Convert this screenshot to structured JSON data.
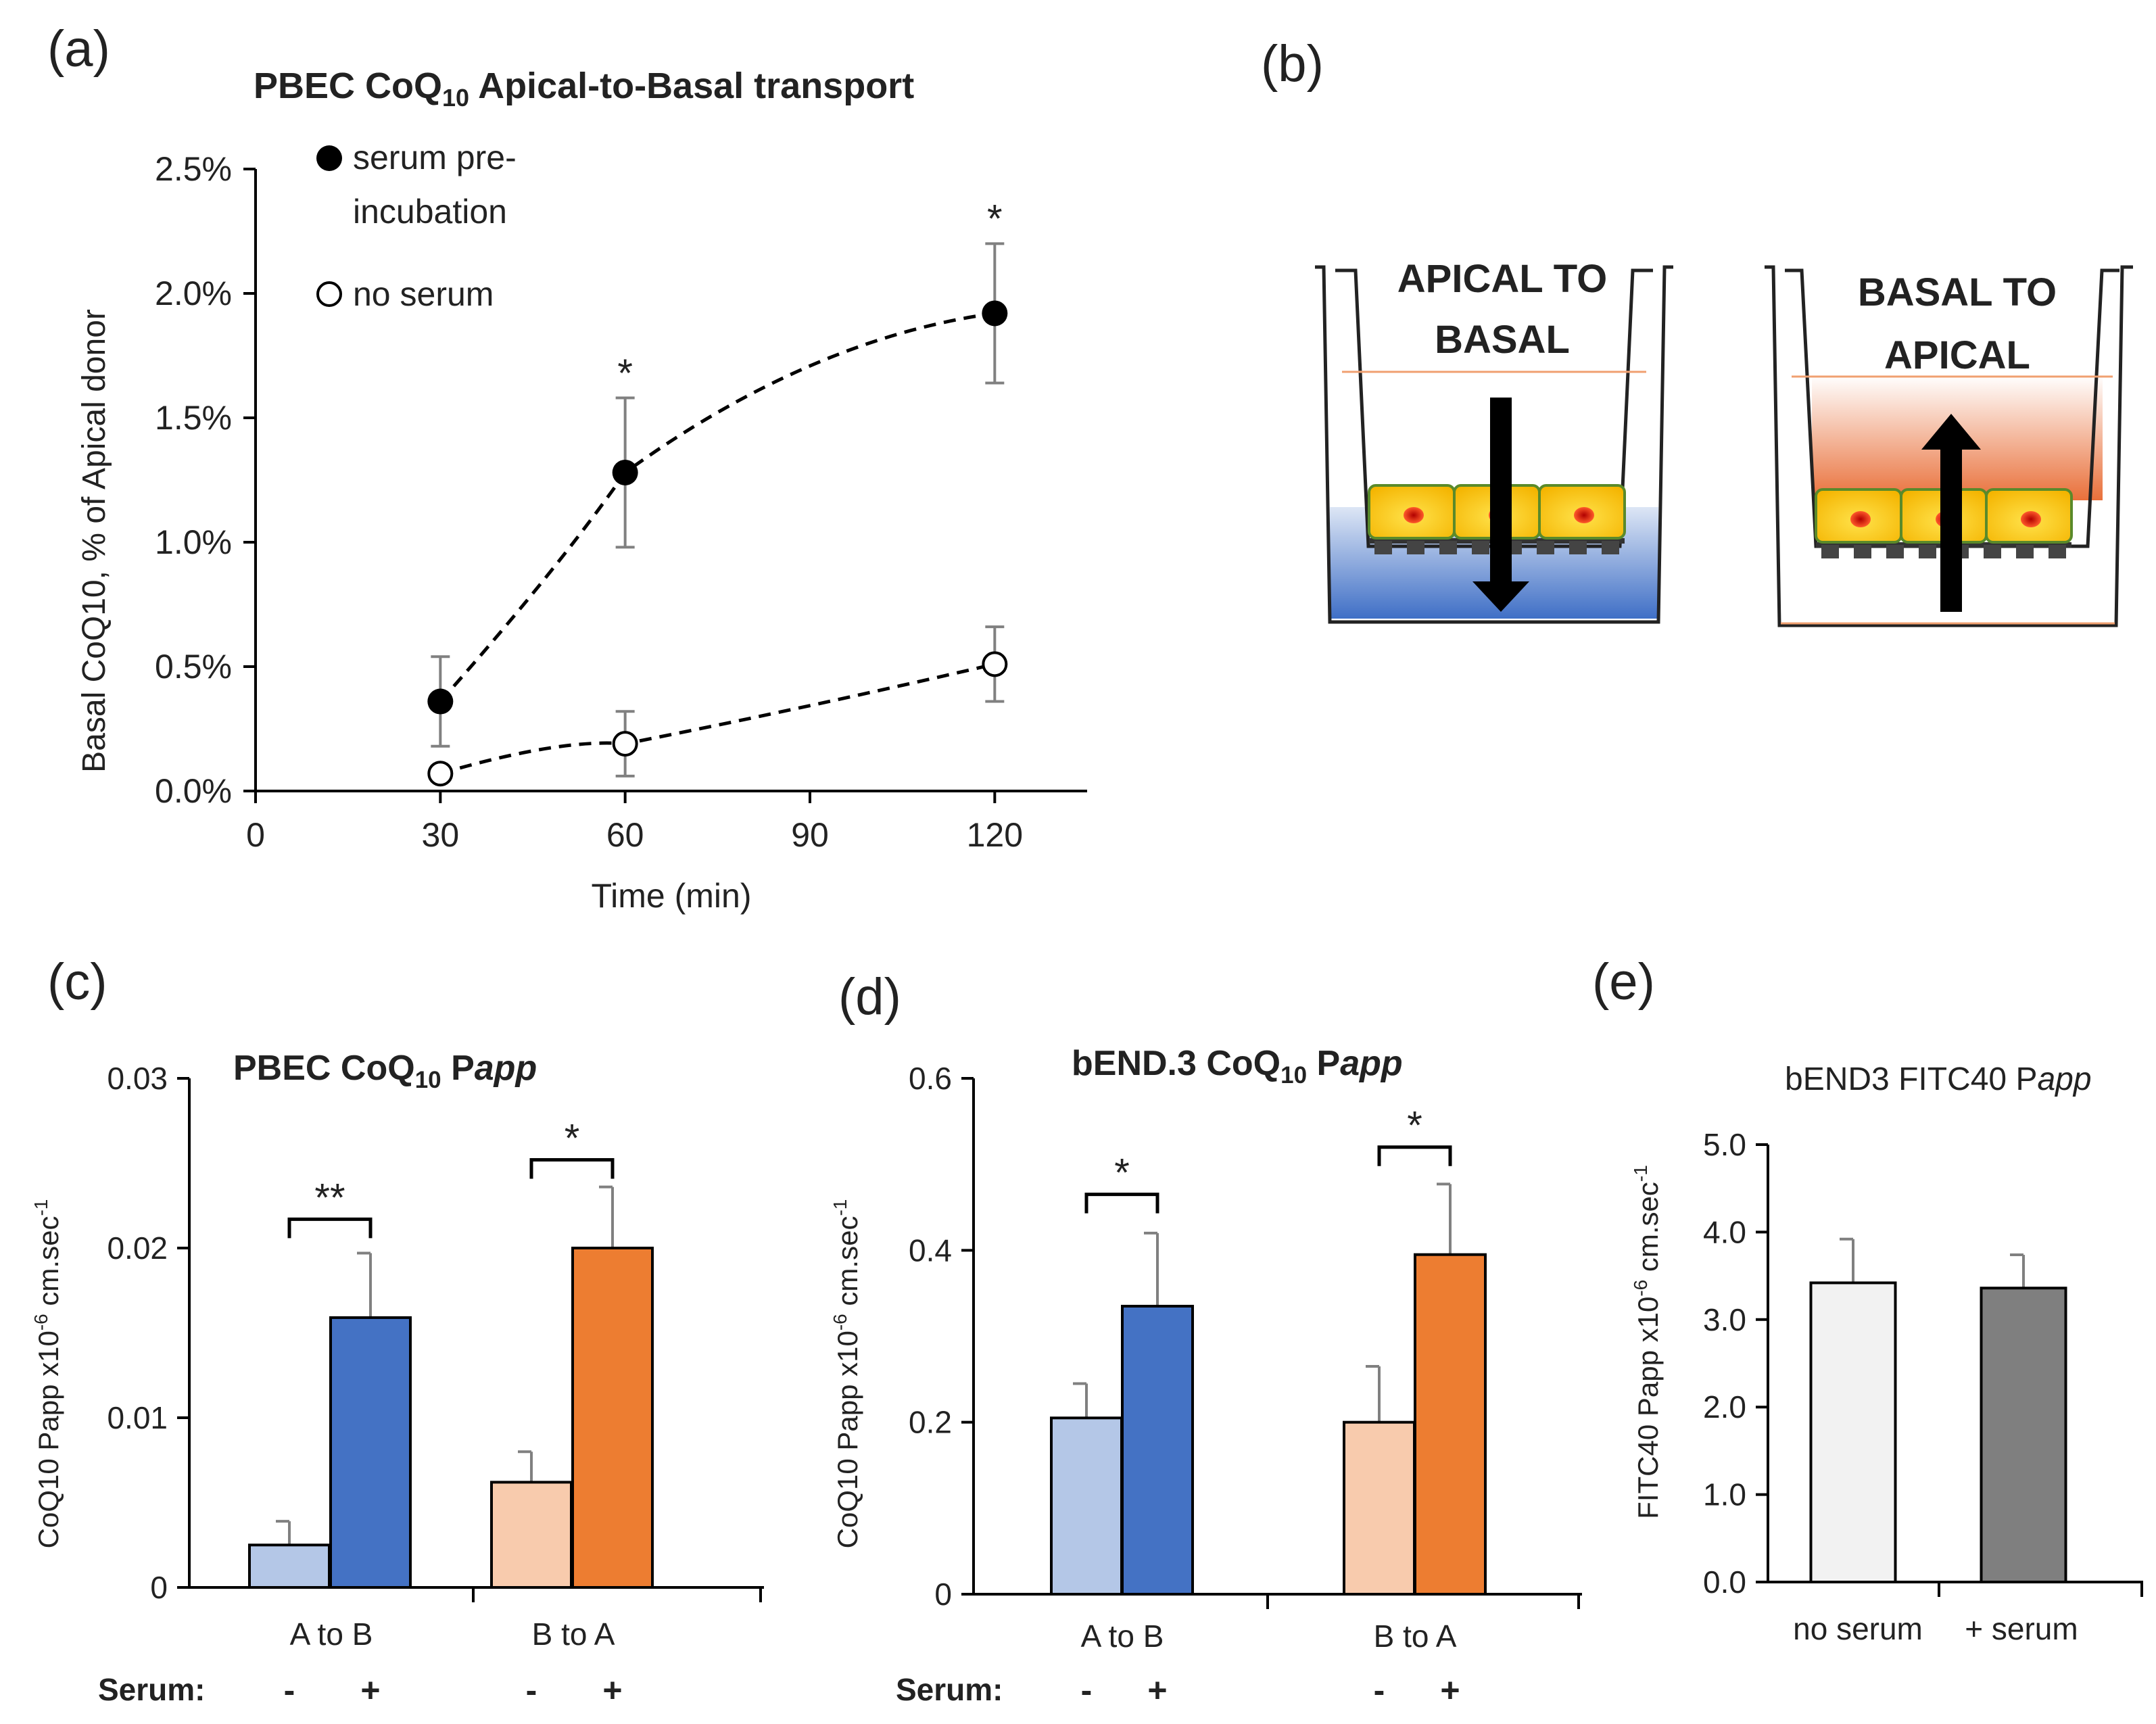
{
  "panels": {
    "a": "(a)",
    "b": "(b)",
    "c": "(c)",
    "d": "(d)",
    "e": "(e)"
  },
  "colors": {
    "light_blue": "#b4c7e7",
    "blue": "#4472c4",
    "light_orange": "#f8cbad",
    "orange": "#ed7d31",
    "light_gray": "#f2f2f2",
    "dark_gray": "#7f7f7f",
    "error_bar": "#808080",
    "axis": "#000000"
  },
  "diagram": {
    "left_label_line1": "APICAL TO",
    "left_label_line2": "BASAL",
    "right_label_line1": "BASAL TO",
    "right_label_line2": "APICAL"
  },
  "chart_data": [
    {
      "id": "a",
      "type": "scatter",
      "title_prefix": "PBEC CoQ",
      "title_sub": "10",
      "title_suffix": " Apical-to-Basal transport",
      "xlabel": "Time (min)",
      "ylabel": "Basal  CoQ10, % of Apical donor",
      "xlim": [
        0,
        135
      ],
      "ylim": [
        0,
        2.5
      ],
      "xticks": [
        "0",
        "30",
        "60",
        "90",
        "120"
      ],
      "xtick_values": [
        0,
        30,
        60,
        90,
        120
      ],
      "yticks": [
        "0.0%",
        "0.5%",
        "1.0%",
        "1.5%",
        "2.0%",
        "2.5%"
      ],
      "ytick_values": [
        0,
        0.5,
        1.0,
        1.5,
        2.0,
        2.5
      ],
      "legend_position": "top-left",
      "series": [
        {
          "name_line1": "serum pre-",
          "name_line2": "incubation",
          "marker": "filled",
          "x": [
            30,
            60,
            120
          ],
          "y": [
            0.36,
            1.28,
            1.92
          ],
          "err": [
            0.18,
            0.3,
            0.28
          ],
          "trend": "dashed"
        },
        {
          "name": "no serum",
          "marker": "open",
          "x": [
            30,
            60,
            120
          ],
          "y": [
            0.07,
            0.19,
            0.51
          ],
          "err": [
            0.03,
            0.13,
            0.15
          ],
          "trend": "dashed"
        }
      ],
      "annotations": [
        {
          "text": "*",
          "x": 60,
          "y": 1.68
        },
        {
          "text": "*",
          "x": 120,
          "y": 2.3
        }
      ]
    },
    {
      "id": "c",
      "type": "bar",
      "title_prefix": "PBEC CoQ",
      "title_sub": "10",
      "title_mid": " P",
      "title_italic": "app",
      "ylabel": "CoQ10  Papp x10",
      "ylabel_exp": "-6",
      "ylabel_unit": " cm.sec",
      "ylabel_unit_exp": "-1",
      "ylim": [
        0,
        0.03
      ],
      "yticks": [
        "0",
        "0.01",
        "0.02",
        "0.03"
      ],
      "ytick_values": [
        0,
        0.01,
        0.02,
        0.03
      ],
      "categories": [
        "A to B",
        "B to A"
      ],
      "serum_label": "Serum:",
      "serum_signs": [
        "-",
        "+",
        "-",
        "+"
      ],
      "bars": [
        {
          "value": 0.0025,
          "err": 0.0014,
          "color": "light_blue"
        },
        {
          "value": 0.0159,
          "err": 0.0038,
          "color": "blue"
        },
        {
          "value": 0.0062,
          "err": 0.0018,
          "color": "light_orange"
        },
        {
          "value": 0.02,
          "err": 0.0036,
          "color": "orange"
        }
      ],
      "significance": [
        {
          "pair": [
            0,
            1
          ],
          "text": "**",
          "level": 0.0217
        },
        {
          "pair": [
            2,
            3
          ],
          "text": "*",
          "level": 0.0252
        }
      ]
    },
    {
      "id": "d",
      "type": "bar",
      "title_prefix": "bEND.3 CoQ",
      "title_sub": "10",
      "title_mid": " P",
      "title_italic": "app",
      "ylabel": "CoQ10 Papp x10",
      "ylabel_exp": "-6",
      "ylabel_unit": "  cm.sec",
      "ylabel_unit_exp": "-1",
      "ylim": [
        0,
        0.6
      ],
      "yticks": [
        "0",
        "0.2",
        "0.4",
        "0.6"
      ],
      "ytick_values": [
        0,
        0.2,
        0.4,
        0.6
      ],
      "categories": [
        "A to B",
        "B to A"
      ],
      "serum_label": "Serum:",
      "serum_signs": [
        "-",
        "+",
        "-",
        "+"
      ],
      "bars": [
        {
          "value": 0.205,
          "err": 0.04,
          "color": "light_blue"
        },
        {
          "value": 0.335,
          "err": 0.085,
          "color": "blue"
        },
        {
          "value": 0.2,
          "err": 0.065,
          "color": "light_orange"
        },
        {
          "value": 0.395,
          "err": 0.082,
          "color": "orange"
        }
      ],
      "significance": [
        {
          "pair": [
            0,
            1
          ],
          "text": "*",
          "level": 0.465
        },
        {
          "pair": [
            2,
            3
          ],
          "text": "*",
          "level": 0.52
        }
      ]
    },
    {
      "id": "e",
      "type": "bar",
      "title_prefix": "bEND3 FITC40 P",
      "title_italic": "app",
      "ylabel": "FITC40 Papp x10",
      "ylabel_exp": "-6",
      "ylabel_unit": "  cm.sec",
      "ylabel_unit_exp": "-1",
      "ylim": [
        0,
        5.0
      ],
      "yticks": [
        "0.0",
        "1.0",
        "2.0",
        "3.0",
        "4.0",
        "5.0"
      ],
      "ytick_values": [
        0,
        1,
        2,
        3,
        4,
        5
      ],
      "categories": [
        "no serum",
        "+ serum"
      ],
      "bars": [
        {
          "value": 3.42,
          "err": 0.5,
          "color": "light_gray"
        },
        {
          "value": 3.36,
          "err": 0.38,
          "color": "dark_gray"
        }
      ]
    }
  ]
}
